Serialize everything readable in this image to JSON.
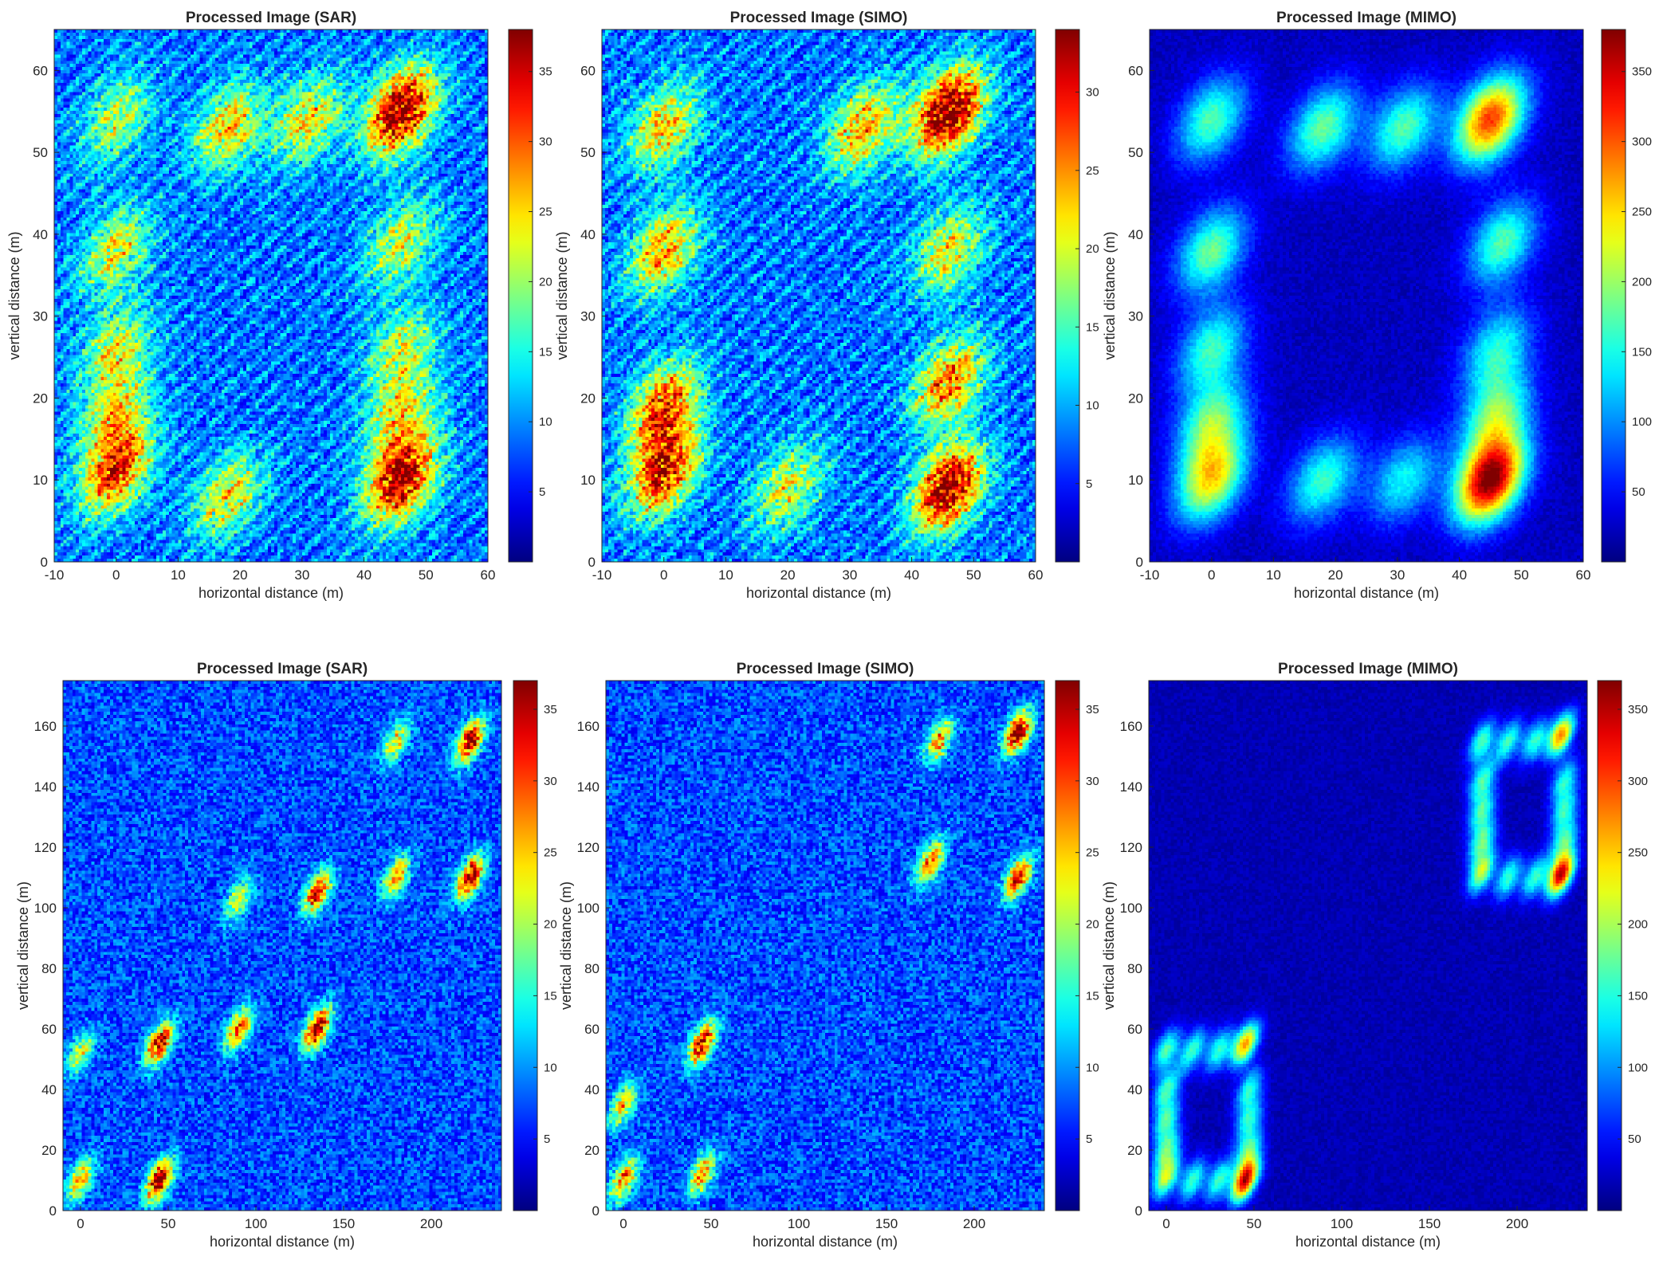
{
  "chart_data": [
    {
      "type": "heatmap",
      "title": "Processed Image (SAR)",
      "xlabel": "horizontal distance (m)",
      "ylabel": "vertical distance (m)",
      "xlim": [
        -10,
        60
      ],
      "ylim": [
        0,
        65
      ],
      "xticks": [
        -10,
        0,
        10,
        20,
        30,
        40,
        50,
        60
      ],
      "yticks": [
        0,
        10,
        20,
        30,
        40,
        50,
        60
      ],
      "colorbar": {
        "colormap": "jet",
        "range": [
          0,
          38
        ],
        "ticks": [
          5,
          10,
          15,
          20,
          25,
          30,
          35
        ]
      },
      "hotspots": [
        {
          "x": 0,
          "y": 11,
          "v": 22
        },
        {
          "x": 0,
          "y": 18,
          "v": 14
        },
        {
          "x": 0,
          "y": 26,
          "v": 13
        },
        {
          "x": 0,
          "y": 38,
          "v": 14
        },
        {
          "x": 0,
          "y": 54,
          "v": 12
        },
        {
          "x": 18,
          "y": 53,
          "v": 16
        },
        {
          "x": 31,
          "y": 54,
          "v": 15
        },
        {
          "x": 46,
          "y": 55,
          "v": 30
        },
        {
          "x": 46,
          "y": 39,
          "v": 13
        },
        {
          "x": 46,
          "y": 26,
          "v": 12
        },
        {
          "x": 46,
          "y": 18,
          "v": 14
        },
        {
          "x": 46,
          "y": 10,
          "v": 28
        },
        {
          "x": 18,
          "y": 8,
          "v": 14
        }
      ]
    },
    {
      "type": "heatmap",
      "title": "Processed Image (SIMO)",
      "xlabel": "horizontal distance (m)",
      "ylabel": "vertical distance (m)",
      "xlim": [
        -10,
        60
      ],
      "ylim": [
        0,
        65
      ],
      "xticks": [
        -10,
        0,
        10,
        20,
        30,
        40,
        50,
        60
      ],
      "yticks": [
        0,
        10,
        20,
        30,
        40,
        50,
        60
      ],
      "colorbar": {
        "colormap": "jet",
        "range": [
          0,
          34
        ],
        "ticks": [
          5,
          10,
          15,
          20,
          25,
          30
        ]
      },
      "hotspots": [
        {
          "x": 0,
          "y": 11,
          "v": 22
        },
        {
          "x": 0,
          "y": 19,
          "v": 20
        },
        {
          "x": 0,
          "y": 38,
          "v": 16
        },
        {
          "x": 0,
          "y": 53,
          "v": 14
        },
        {
          "x": 32,
          "y": 53,
          "v": 16
        },
        {
          "x": 46,
          "y": 55,
          "v": 28
        },
        {
          "x": 46,
          "y": 38,
          "v": 13
        },
        {
          "x": 46,
          "y": 22,
          "v": 18
        },
        {
          "x": 46,
          "y": 9,
          "v": 26
        },
        {
          "x": 20,
          "y": 9,
          "v": 12
        }
      ]
    },
    {
      "type": "heatmap",
      "title": "Processed Image (MIMO)",
      "xlabel": "horizontal distance (m)",
      "ylabel": "vertical distance (m)",
      "xlim": [
        -10,
        60
      ],
      "ylim": [
        0,
        65
      ],
      "xticks": [
        -10,
        0,
        10,
        20,
        30,
        40,
        50,
        60
      ],
      "yticks": [
        0,
        10,
        20,
        30,
        40,
        50,
        60
      ],
      "colorbar": {
        "colormap": "jet",
        "range": [
          0,
          380
        ],
        "ticks": [
          50,
          100,
          150,
          200,
          250,
          300,
          350
        ]
      },
      "hotspots": [
        {
          "x": 0,
          "y": 10,
          "v": 220
        },
        {
          "x": 0,
          "y": 17,
          "v": 160
        },
        {
          "x": 0,
          "y": 26,
          "v": 140
        },
        {
          "x": 0,
          "y": 38,
          "v": 160
        },
        {
          "x": 0,
          "y": 54,
          "v": 150
        },
        {
          "x": 18,
          "y": 53,
          "v": 160
        },
        {
          "x": 31,
          "y": 53,
          "v": 150
        },
        {
          "x": 45,
          "y": 54,
          "v": 290
        },
        {
          "x": 47,
          "y": 39,
          "v": 150
        },
        {
          "x": 46,
          "y": 26,
          "v": 130
        },
        {
          "x": 46,
          "y": 18,
          "v": 160
        },
        {
          "x": 45,
          "y": 10,
          "v": 360
        },
        {
          "x": 18,
          "y": 10,
          "v": 140
        },
        {
          "x": 31,
          "y": 10,
          "v": 120
        }
      ]
    },
    {
      "type": "heatmap",
      "title": "Processed Image (SAR)",
      "xlabel": "horizontal distance (m)",
      "ylabel": "vertical distance (m)",
      "xlim": [
        -10,
        240
      ],
      "ylim": [
        0,
        175
      ],
      "xticks": [
        0,
        50,
        100,
        150,
        200
      ],
      "yticks": [
        0,
        20,
        40,
        60,
        80,
        100,
        120,
        140,
        160
      ],
      "colorbar": {
        "colormap": "jet",
        "range": [
          0,
          37
        ],
        "ticks": [
          5,
          10,
          15,
          20,
          25,
          30,
          35
        ]
      },
      "hotspots": [
        {
          "x": 0,
          "y": 10,
          "v": 18
        },
        {
          "x": 45,
          "y": 10,
          "v": 30
        },
        {
          "x": 45,
          "y": 55,
          "v": 28
        },
        {
          "x": 0,
          "y": 52,
          "v": 14
        },
        {
          "x": 90,
          "y": 60,
          "v": 22
        },
        {
          "x": 135,
          "y": 60,
          "v": 30
        },
        {
          "x": 135,
          "y": 105,
          "v": 26
        },
        {
          "x": 90,
          "y": 103,
          "v": 14
        },
        {
          "x": 180,
          "y": 110,
          "v": 20
        },
        {
          "x": 222,
          "y": 110,
          "v": 30
        },
        {
          "x": 222,
          "y": 155,
          "v": 30
        },
        {
          "x": 180,
          "y": 155,
          "v": 16
        }
      ]
    },
    {
      "type": "heatmap",
      "title": "Processed Image (SIMO)",
      "xlabel": "horizontal distance (m)",
      "ylabel": "vertical distance (m)",
      "xlim": [
        -10,
        240
      ],
      "ylim": [
        0,
        175
      ],
      "xticks": [
        0,
        50,
        100,
        150,
        200
      ],
      "yticks": [
        0,
        20,
        40,
        60,
        80,
        100,
        120,
        140,
        160
      ],
      "colorbar": {
        "colormap": "jet",
        "range": [
          0,
          37
        ],
        "ticks": [
          5,
          10,
          15,
          20,
          25,
          30,
          35
        ]
      },
      "hotspots": [
        {
          "x": 0,
          "y": 10,
          "v": 22
        },
        {
          "x": 45,
          "y": 12,
          "v": 20
        },
        {
          "x": 45,
          "y": 55,
          "v": 28
        },
        {
          "x": 0,
          "y": 35,
          "v": 18
        },
        {
          "x": 175,
          "y": 115,
          "v": 22
        },
        {
          "x": 225,
          "y": 110,
          "v": 26
        },
        {
          "x": 225,
          "y": 158,
          "v": 30
        },
        {
          "x": 180,
          "y": 155,
          "v": 20
        }
      ]
    },
    {
      "type": "heatmap",
      "title": "Processed Image (MIMO)",
      "xlabel": "horizontal distance (m)",
      "ylabel": "vertical distance (m)",
      "xlim": [
        -10,
        240
      ],
      "ylim": [
        0,
        175
      ],
      "xticks": [
        0,
        50,
        100,
        150,
        200
      ],
      "yticks": [
        0,
        20,
        40,
        60,
        80,
        100,
        120,
        140,
        160
      ],
      "colorbar": {
        "colormap": "jet",
        "range": [
          0,
          370
        ],
        "ticks": [
          50,
          100,
          150,
          200,
          250,
          300,
          350
        ]
      },
      "hotspots": [
        {
          "x": 0,
          "y": 11,
          "v": 190
        },
        {
          "x": 0,
          "y": 20,
          "v": 150
        },
        {
          "x": 0,
          "y": 30,
          "v": 140
        },
        {
          "x": 0,
          "y": 40,
          "v": 140
        },
        {
          "x": 0,
          "y": 53,
          "v": 150
        },
        {
          "x": 15,
          "y": 53,
          "v": 140
        },
        {
          "x": 30,
          "y": 53,
          "v": 140
        },
        {
          "x": 45,
          "y": 55,
          "v": 250
        },
        {
          "x": 47,
          "y": 40,
          "v": 130
        },
        {
          "x": 47,
          "y": 30,
          "v": 130
        },
        {
          "x": 47,
          "y": 20,
          "v": 140
        },
        {
          "x": 45,
          "y": 10,
          "v": 330
        },
        {
          "x": 15,
          "y": 10,
          "v": 140
        },
        {
          "x": 30,
          "y": 10,
          "v": 140
        },
        {
          "x": 180,
          "y": 112,
          "v": 190
        },
        {
          "x": 180,
          "y": 122,
          "v": 150
        },
        {
          "x": 180,
          "y": 132,
          "v": 140
        },
        {
          "x": 180,
          "y": 142,
          "v": 140
        },
        {
          "x": 180,
          "y": 155,
          "v": 150
        },
        {
          "x": 195,
          "y": 155,
          "v": 140
        },
        {
          "x": 210,
          "y": 155,
          "v": 140
        },
        {
          "x": 225,
          "y": 157,
          "v": 260
        },
        {
          "x": 227,
          "y": 142,
          "v": 130
        },
        {
          "x": 227,
          "y": 132,
          "v": 130
        },
        {
          "x": 227,
          "y": 122,
          "v": 140
        },
        {
          "x": 225,
          "y": 111,
          "v": 330
        },
        {
          "x": 195,
          "y": 110,
          "v": 140
        },
        {
          "x": 210,
          "y": 110,
          "v": 140
        }
      ]
    }
  ]
}
